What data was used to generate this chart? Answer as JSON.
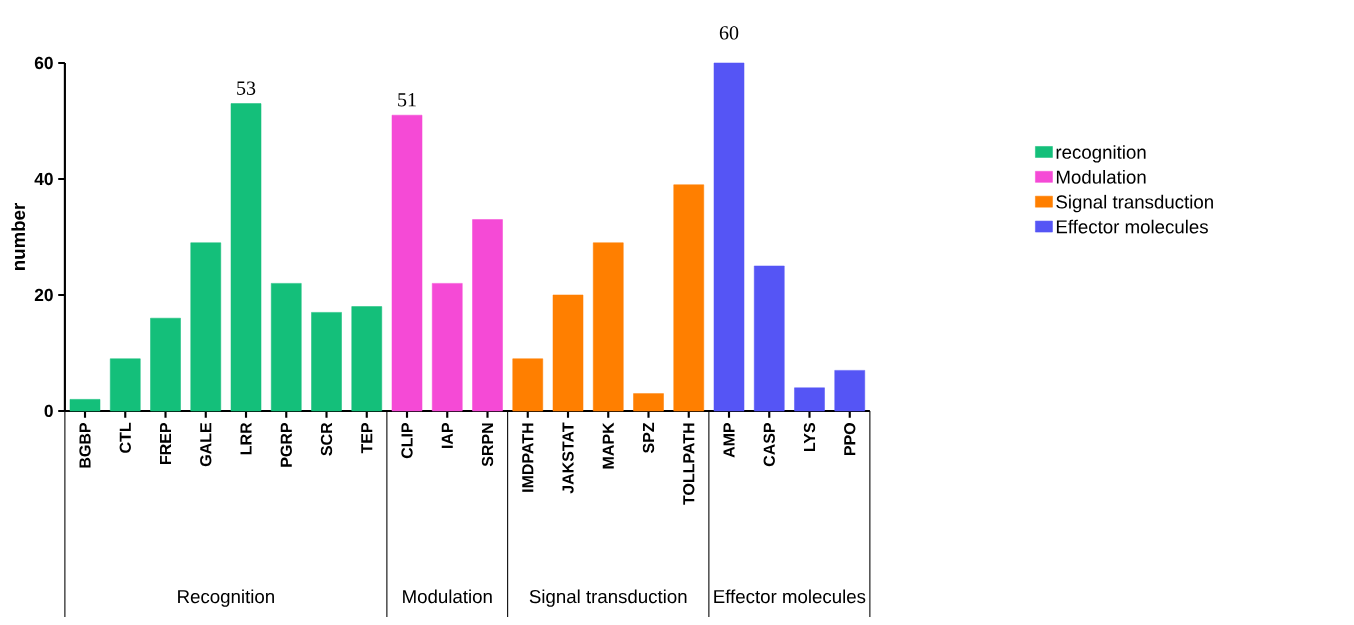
{
  "chart_data": {
    "type": "bar",
    "ylabel": "number",
    "categories": [
      "BGBP",
      "CTL",
      "FREP",
      "GALE",
      "LRR",
      "PGRP",
      "SCR",
      "TEP",
      "CLIP",
      "IAP",
      "SRPN",
      "IMDPATH",
      "JAKSTAT",
      "MAPK",
      "SPZ",
      "TOLLPATH",
      "AMP",
      "CASP",
      "LYS",
      "PPO"
    ],
    "series": [
      {
        "name": "recognition",
        "color": "#14bf7a",
        "values": [
          2,
          9,
          16,
          29,
          53,
          22,
          17,
          18,
          null,
          null,
          null,
          null,
          null,
          null,
          null,
          null,
          null,
          null,
          null,
          null
        ],
        "value_labels": [
          null,
          null,
          null,
          null,
          "53",
          null,
          null,
          null,
          null,
          null,
          null,
          null,
          null,
          null,
          null,
          null,
          null,
          null,
          null,
          null
        ]
      },
      {
        "name": "Modulation",
        "color": "#f54ad6",
        "values": [
          null,
          null,
          null,
          null,
          null,
          null,
          null,
          null,
          51,
          22,
          33,
          null,
          null,
          null,
          null,
          null,
          null,
          null,
          null,
          null
        ],
        "value_labels": [
          null,
          null,
          null,
          null,
          null,
          null,
          null,
          null,
          "51",
          null,
          null,
          null,
          null,
          null,
          null,
          null,
          null,
          null,
          null,
          null
        ]
      },
      {
        "name": "Signal transduction",
        "color": "#ff7f00",
        "values": [
          null,
          null,
          null,
          null,
          null,
          null,
          null,
          null,
          null,
          null,
          null,
          9,
          20,
          29,
          3,
          39,
          null,
          null,
          null,
          null
        ]
      },
      {
        "name": "Effector molecules",
        "color": "#5555f5",
        "values": [
          null,
          null,
          null,
          null,
          null,
          null,
          null,
          null,
          null,
          null,
          null,
          null,
          null,
          null,
          null,
          null,
          60,
          25,
          4,
          7
        ],
        "value_labels": [
          null,
          null,
          null,
          null,
          null,
          null,
          null,
          null,
          null,
          null,
          null,
          null,
          null,
          null,
          null,
          null,
          "60",
          null,
          null,
          null
        ]
      }
    ],
    "annotations": [
      "Recognition",
      "Modulation",
      "Signal transduction",
      "Effector molecules"
    ],
    "ylim": [
      0,
      60
    ],
    "yticks": [
      0,
      20,
      40,
      60
    ],
    "grid": false,
    "legend": "right"
  }
}
